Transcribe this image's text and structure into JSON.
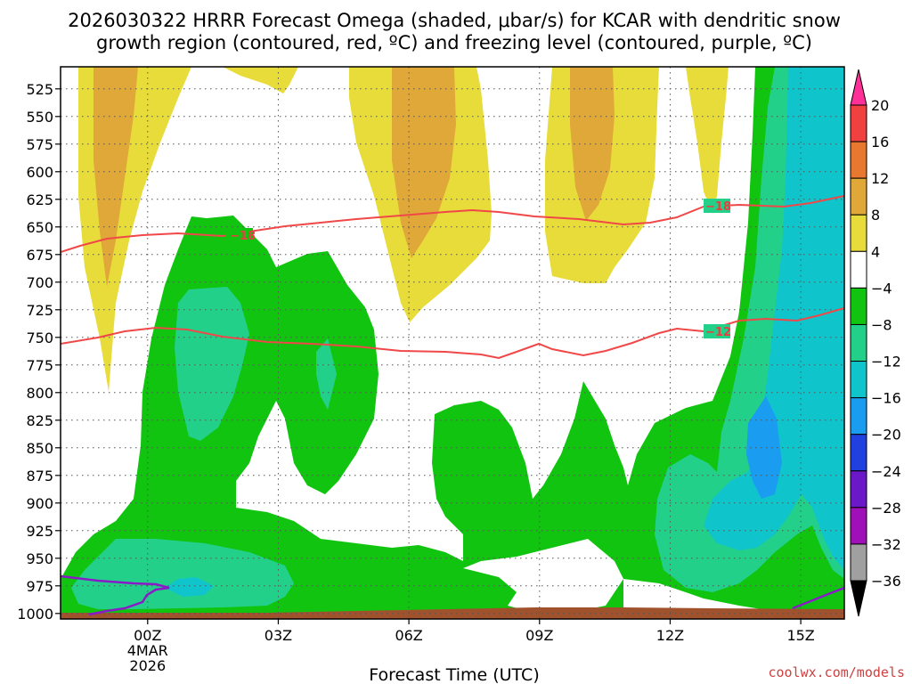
{
  "chart_data": {
    "type": "heatmap",
    "title_line1": "2026030322 HRRR Forecast Omega (shaded, μbar/s) for KCAR with dendritic snow",
    "title_line2": "growth region (contoured, red, ºC) and freezing level (contoured, purple, ºC)",
    "xlabel": "Forecast Time (UTC)",
    "x_ticks": [
      {
        "hour": 0,
        "label": "00Z",
        "sub1": "4MAR",
        "sub2": "2026"
      },
      {
        "hour": 3,
        "label": "03Z",
        "sub1": "",
        "sub2": ""
      },
      {
        "hour": 6,
        "label": "06Z",
        "sub1": "",
        "sub2": ""
      },
      {
        "hour": 9,
        "label": "09Z",
        "sub1": "",
        "sub2": ""
      },
      {
        "hour": 12,
        "label": "12Z",
        "sub1": "",
        "sub2": ""
      },
      {
        "hour": 15,
        "label": "15Z",
        "sub1": "",
        "sub2": ""
      }
    ],
    "x_range_hours": [
      -2.0,
      16.0
    ],
    "y_ticks": [
      "525",
      "550",
      "575",
      "600",
      "625",
      "650",
      "675",
      "700",
      "725",
      "750",
      "775",
      "800",
      "825",
      "850",
      "875",
      "900",
      "925",
      "950",
      "975",
      "1000"
    ],
    "y_range_mb": [
      505,
      1005
    ],
    "colorbar": {
      "units": "μbar/s",
      "labels": [
        "20",
        "16",
        "12",
        "8",
        "4",
        "−4",
        "−8",
        "−12",
        "−16",
        "−20",
        "−24",
        "−28",
        "−32",
        "−36"
      ],
      "colors": [
        "#ff3098",
        "#f04040",
        "#e87830",
        "#e0a838",
        "#e8dc3a",
        "#ffffff",
        "#10c410",
        "#22d08a",
        "#10c4cc",
        "#1a9cf0",
        "#2040e0",
        "#6a18c8",
        "#a010b8",
        "#a0a0a0",
        "#000000"
      ]
    },
    "contour_labels": [
      {
        "text": "−18",
        "color": "#e84040"
      },
      {
        "text": "−18",
        "color": "#e84040"
      },
      {
        "text": "−12",
        "color": "#e84040"
      }
    ],
    "credit": "coolwx.com/models"
  }
}
